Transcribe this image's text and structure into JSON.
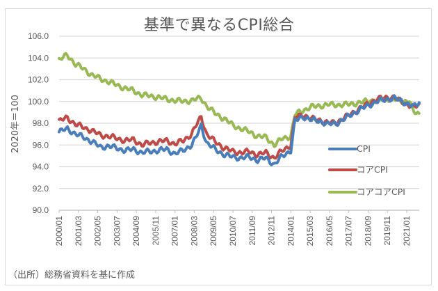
{
  "chart": {
    "title": "基準で異なるCPI総合",
    "ylabel": "2020年＝100",
    "source": "（出所）総務省資料を基に作成",
    "legend": [
      {
        "label": "CPI",
        "color": "#4a7ebb"
      },
      {
        "label": "コアCPI",
        "color": "#be4b48"
      },
      {
        "label": "コアコアCPI",
        "color": "#98b954"
      }
    ],
    "yticks": [
      "106.0",
      "104.0",
      "102.0",
      "100.0",
      "98.0",
      "96.0",
      "94.0",
      "92.0",
      "90.0"
    ],
    "xticks": [
      "2000/01",
      "2001/03",
      "2002/05",
      "2003/07",
      "2004/09",
      "2005/11",
      "2007/01",
      "2008/03",
      "2009/05",
      "2010/07",
      "2011/09",
      "2012/11",
      "2014/01",
      "2015/03",
      "2016/05",
      "2017/07",
      "2018/09",
      "2019/11",
      "2021/01"
    ]
  },
  "chart_data": {
    "type": "line",
    "title": "基準で異なるCPI総合",
    "xlabel": "",
    "ylabel": "2020年＝100",
    "ylim": [
      90,
      106
    ],
    "grid": true,
    "legend_position": "right-inside-lower",
    "x": [
      "2000/01",
      "2000/07",
      "2001/01",
      "2001/07",
      "2002/01",
      "2002/07",
      "2003/01",
      "2003/07",
      "2004/01",
      "2004/07",
      "2005/01",
      "2005/07",
      "2006/01",
      "2006/07",
      "2007/01",
      "2007/07",
      "2008/01",
      "2008/04",
      "2008/08",
      "2008/12",
      "2009/06",
      "2010/01",
      "2010/07",
      "2011/01",
      "2011/07",
      "2012/01",
      "2012/07",
      "2013/01",
      "2013/07",
      "2014/01",
      "2014/04",
      "2014/10",
      "2015/04",
      "2015/10",
      "2016/04",
      "2016/10",
      "2017/04",
      "2017/10",
      "2018/04",
      "2018/10",
      "2019/04",
      "2019/10",
      "2020/04",
      "2020/10",
      "2021/03",
      "2021/06",
      "2021/10"
    ],
    "series": [
      {
        "name": "CPI",
        "values": [
          97.2,
          97.5,
          97.0,
          96.7,
          96.3,
          95.8,
          95.9,
          95.7,
          95.5,
          95.6,
          95.3,
          95.4,
          95.5,
          95.6,
          95.2,
          95.5,
          96.0,
          96.6,
          97.8,
          96.2,
          95.6,
          95.1,
          94.9,
          94.8,
          94.9,
          94.6,
          94.8,
          94.2,
          95.0,
          95.5,
          98.2,
          98.6,
          98.3,
          98.2,
          97.9,
          98.0,
          98.4,
          98.9,
          99.3,
          99.7,
          100.0,
          100.2,
          100.3,
          100.0,
          99.7,
          99.5,
          99.9
        ]
      },
      {
        "name": "コアCPI",
        "values": [
          98.2,
          98.5,
          97.9,
          97.6,
          97.3,
          96.9,
          96.8,
          96.6,
          96.4,
          96.5,
          96.0,
          96.2,
          96.3,
          96.4,
          96.1,
          96.4,
          97.0,
          97.7,
          98.6,
          97.0,
          96.3,
          95.7,
          95.4,
          95.3,
          95.4,
          95.1,
          95.3,
          94.8,
          95.5,
          96.0,
          98.5,
          98.8,
          98.4,
          98.3,
          98.0,
          98.1,
          98.5,
          99.0,
          99.4,
          99.9,
          100.2,
          100.4,
          100.3,
          100.0,
          99.6,
          99.4,
          99.8
        ]
      },
      {
        "name": "コアコアCPI",
        "values": [
          103.8,
          104.3,
          103.4,
          103.0,
          102.4,
          102.1,
          101.8,
          101.5,
          101.2,
          101.0,
          100.6,
          100.5,
          100.4,
          100.2,
          100.1,
          100.0,
          100.1,
          100.2,
          100.3,
          99.6,
          98.9,
          98.4,
          97.8,
          97.5,
          97.2,
          96.8,
          96.7,
          96.0,
          96.6,
          96.8,
          98.8,
          99.2,
          99.5,
          99.6,
          99.7,
          99.7,
          99.7,
          99.8,
          99.9,
          100.1,
          100.1,
          100.3,
          100.2,
          100.0,
          100.1,
          99.0,
          98.9
        ]
      }
    ]
  }
}
